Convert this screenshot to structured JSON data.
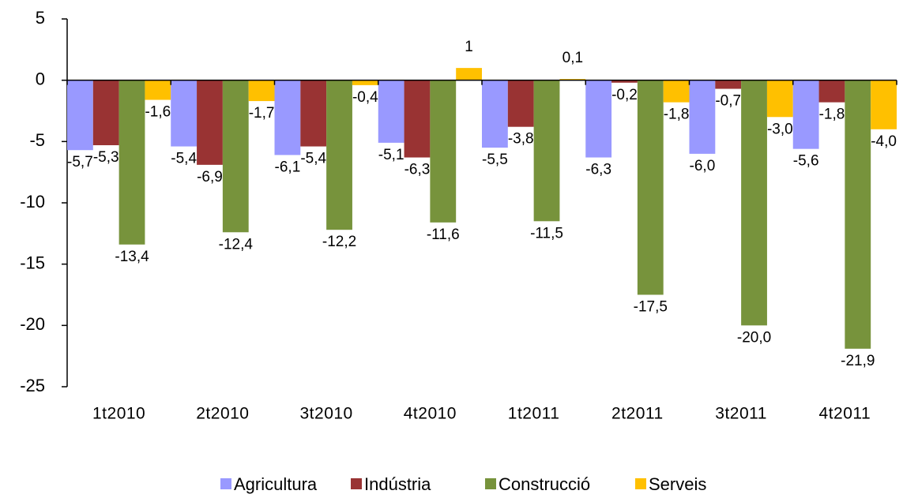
{
  "chart_data": {
    "type": "bar",
    "categories": [
      "1t2010",
      "2t2010",
      "3t2010",
      "4t2010",
      "1t2011",
      "2t2011",
      "3t2011",
      "4t2011"
    ],
    "series": [
      {
        "name": "Agricultura",
        "color": "#9999ff",
        "values": [
          -5.7,
          -5.4,
          -6.1,
          -5.1,
          -5.5,
          -6.3,
          -6.0,
          -5.6
        ],
        "value_labels": [
          "-5,7",
          "-5,4",
          "-6,1",
          "-5,1",
          "-5,5",
          "-6,3",
          "-6,0",
          "-5,6"
        ]
      },
      {
        "name": "Indústria",
        "color": "#993333",
        "values": [
          -5.3,
          -6.9,
          -5.4,
          -6.3,
          -3.8,
          -0.2,
          -0.7,
          -1.8
        ],
        "value_labels": [
          "-5,3",
          "-6,9",
          "-5,4",
          "-6,3",
          "-3,8",
          "-0,2",
          "-0,7",
          "-1,8"
        ]
      },
      {
        "name": "Construcció",
        "color": "#77933c",
        "values": [
          -13.4,
          -12.4,
          -12.2,
          -11.6,
          -11.5,
          -17.5,
          -20.0,
          -21.9
        ],
        "value_labels": [
          "-13,4",
          "-12,4",
          "-12,2",
          "-11,6",
          "-11,5",
          "-17,5",
          "-20,0",
          "-21,9"
        ]
      },
      {
        "name": "Serveis",
        "color": "#ffc000",
        "values": [
          -1.6,
          -1.7,
          -0.4,
          1,
          0.1,
          -1.8,
          -3.0,
          -4.0
        ],
        "value_labels": [
          "-1,6",
          "-1,7",
          "-0,4",
          "1",
          "0,1",
          "-1,8",
          "-3,0",
          "-4,0"
        ]
      }
    ],
    "ylim": [
      -25,
      5
    ],
    "yticks": [
      5,
      0,
      -5,
      -10,
      -15,
      -20,
      -25
    ],
    "legend": "bottom"
  }
}
